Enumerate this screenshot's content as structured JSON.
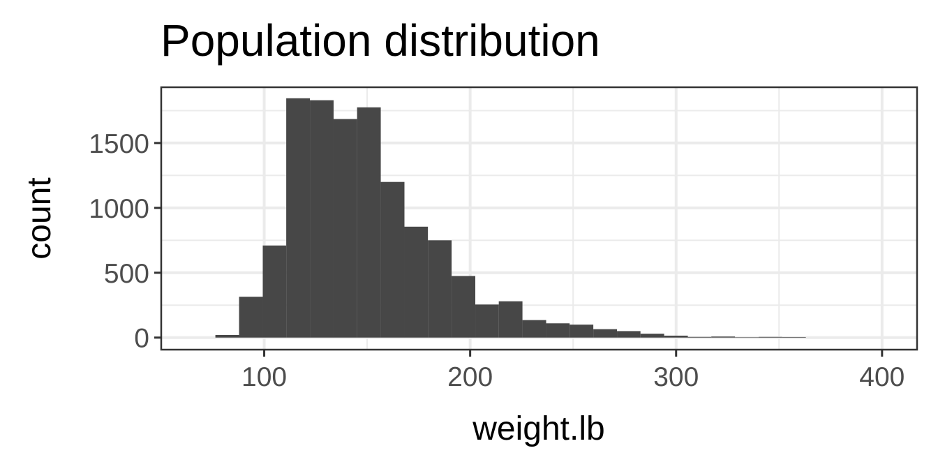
{
  "chart_data": {
    "type": "bar",
    "title": "Population distribution",
    "xlabel": "weight.lb",
    "ylabel": "count",
    "xlim": [
      50,
      417
    ],
    "ylim": [
      -93,
      1930
    ],
    "x_ticks": [
      100,
      200,
      300,
      400
    ],
    "x_minor_ticks": [
      150,
      250,
      350
    ],
    "y_ticks": [
      0,
      500,
      1000,
      1500
    ],
    "y_minor_ticks": [
      250,
      750,
      1250,
      1750
    ],
    "grid": true,
    "bar_color": "#474747",
    "bins": [
      {
        "x0": 76.3,
        "x1": 87.8,
        "count": 20
      },
      {
        "x0": 87.8,
        "x1": 99.3,
        "count": 315
      },
      {
        "x0": 99.3,
        "x1": 110.7,
        "count": 710
      },
      {
        "x0": 110.7,
        "x1": 122.2,
        "count": 1845
      },
      {
        "x0": 122.2,
        "x1": 133.7,
        "count": 1830
      },
      {
        "x0": 133.7,
        "x1": 145.1,
        "count": 1685
      },
      {
        "x0": 145.1,
        "x1": 156.6,
        "count": 1775
      },
      {
        "x0": 156.6,
        "x1": 168.1,
        "count": 1200
      },
      {
        "x0": 168.1,
        "x1": 179.5,
        "count": 855
      },
      {
        "x0": 179.5,
        "x1": 191.0,
        "count": 750
      },
      {
        "x0": 191.0,
        "x1": 202.5,
        "count": 475
      },
      {
        "x0": 202.5,
        "x1": 213.9,
        "count": 255
      },
      {
        "x0": 213.9,
        "x1": 225.4,
        "count": 280
      },
      {
        "x0": 225.4,
        "x1": 236.9,
        "count": 135
      },
      {
        "x0": 236.9,
        "x1": 248.3,
        "count": 110
      },
      {
        "x0": 248.3,
        "x1": 259.8,
        "count": 100
      },
      {
        "x0": 259.8,
        "x1": 271.3,
        "count": 65
      },
      {
        "x0": 271.3,
        "x1": 282.7,
        "count": 50
      },
      {
        "x0": 282.7,
        "x1": 294.2,
        "count": 30
      },
      {
        "x0": 294.2,
        "x1": 305.7,
        "count": 15
      },
      {
        "x0": 305.7,
        "x1": 317.1,
        "count": 5
      },
      {
        "x0": 317.1,
        "x1": 328.6,
        "count": 8
      },
      {
        "x0": 328.6,
        "x1": 340.1,
        "count": 3
      },
      {
        "x0": 340.1,
        "x1": 351.5,
        "count": 5
      },
      {
        "x0": 351.5,
        "x1": 363.0,
        "count": 4
      }
    ]
  }
}
